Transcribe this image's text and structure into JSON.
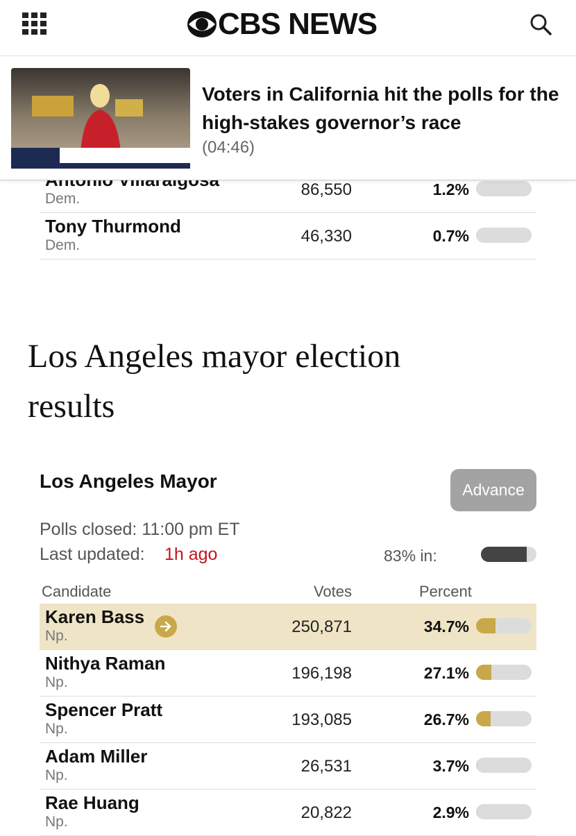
{
  "header": {
    "logo": "CBS NEWS"
  },
  "video": {
    "title": "Voters in California hit the polls for the high-stakes governor’s race",
    "duration": "(04:46)"
  },
  "previous_race": {
    "rows": [
      {
        "name": "Antonio Villaraigosa",
        "party": "Dem.",
        "votes": "86,550",
        "percent": {
          "value": 1.2,
          "label": "1.2%"
        },
        "color": "#d6d6d6"
      },
      {
        "name": "Tony Thurmond",
        "party": "Dem.",
        "votes": "46,330",
        "percent": {
          "value": 0.7,
          "label": "0.7%"
        },
        "color": "#d6d6d6"
      }
    ]
  },
  "section_title": "Los Angeles mayor election results",
  "race": {
    "title": "Los Angeles Mayor",
    "button": "Advance",
    "polls_closed": "Polls closed: 11:00 pm ET",
    "last_updated_label": "Last updated:",
    "last_updated": "1h ago",
    "reporting": {
      "value": 83,
      "label": "83% in:"
    },
    "columns": [
      "Candidate",
      "Votes",
      "Percent"
    ],
    "rows": [
      {
        "name": "Karen Bass",
        "party": "Np.",
        "votes": "250,871",
        "percent": {
          "value": 34.7,
          "label": "34.7%"
        },
        "color": "#c9a84a"
      },
      {
        "name": "Nithya Raman",
        "party": "Np.",
        "votes": "196,198",
        "percent": {
          "value": 27.1,
          "label": "27.1%"
        },
        "color": "#c9a84a"
      },
      {
        "name": "Spencer Pratt",
        "party": "Np.",
        "votes": "193,085",
        "percent": {
          "value": 26.7,
          "label": "26.7%"
        },
        "color": "#c9a84a"
      },
      {
        "name": "Adam Miller",
        "party": "Np.",
        "votes": "26,531",
        "percent": {
          "value": 3.7,
          "label": "3.7%"
        },
        "color": "#d6d6d6"
      },
      {
        "name": "Rae Huang",
        "party": "Np.",
        "votes": "20,822",
        "percent": {
          "value": 2.9,
          "label": "2.9%"
        },
        "color": "#d6d6d6"
      }
    ]
  }
}
